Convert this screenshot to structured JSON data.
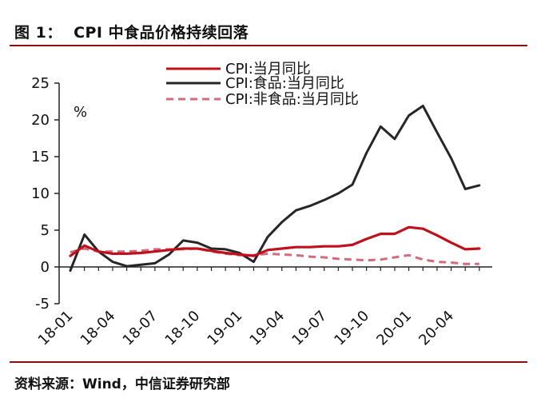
{
  "header": {
    "title": "图 1：  CPI 中食品价格持续回落"
  },
  "footer": {
    "source": "资料来源：Wind，中信证券研究部"
  },
  "chart_data": {
    "type": "line",
    "title": "",
    "xlabel": "",
    "ylabel": "",
    "y_unit": "%",
    "ylim": [
      -5,
      25
    ],
    "yticks": [
      -5,
      0,
      5,
      10,
      15,
      20,
      25
    ],
    "grid": false,
    "legend_position": "top-center",
    "x": [
      "18-01",
      "18-02",
      "18-03",
      "18-04",
      "18-05",
      "18-06",
      "18-07",
      "18-08",
      "18-09",
      "18-10",
      "18-11",
      "18-12",
      "19-01",
      "19-02",
      "19-03",
      "19-04",
      "19-05",
      "19-06",
      "19-07",
      "19-08",
      "19-09",
      "19-10",
      "19-11",
      "19-12",
      "20-01",
      "20-02",
      "20-03",
      "20-04",
      "20-05",
      "20-06"
    ],
    "xtick_labels": [
      "18-01",
      "18-04",
      "18-07",
      "18-10",
      "19-01",
      "19-04",
      "19-07",
      "19-10",
      "20-01",
      "20-04"
    ],
    "series": [
      {
        "name": "CPI:当月同比",
        "color": "#c0101c",
        "style": "solid",
        "values": [
          1.5,
          2.9,
          2.1,
          1.8,
          1.8,
          1.9,
          2.1,
          2.3,
          2.5,
          2.5,
          2.2,
          1.9,
          1.7,
          1.5,
          2.3,
          2.5,
          2.7,
          2.7,
          2.8,
          2.8,
          3.0,
          3.8,
          4.5,
          4.5,
          5.4,
          5.2,
          4.3,
          3.3,
          2.4,
          2.5
        ]
      },
      {
        "name": "CPI:食品:当月同比",
        "color": "#262626",
        "style": "solid",
        "values": [
          -0.5,
          4.4,
          2.1,
          0.7,
          0.1,
          0.3,
          0.5,
          1.7,
          3.6,
          3.3,
          2.5,
          2.4,
          1.9,
          0.7,
          4.1,
          6.1,
          7.7,
          8.3,
          9.1,
          10.0,
          11.2,
          15.5,
          19.1,
          17.4,
          20.6,
          21.9,
          18.3,
          14.8,
          10.6,
          11.1
        ]
      },
      {
        "name": "CPI:非食品:当月同比",
        "color": "#d26b7c",
        "style": "dashed",
        "values": [
          2.0,
          2.5,
          2.1,
          2.1,
          2.1,
          2.2,
          2.4,
          2.4,
          2.4,
          2.5,
          2.1,
          1.8,
          1.6,
          1.6,
          1.8,
          1.7,
          1.6,
          1.4,
          1.3,
          1.1,
          1.0,
          0.9,
          1.0,
          1.3,
          1.6,
          1.0,
          0.7,
          0.6,
          0.4,
          0.4
        ]
      }
    ]
  }
}
